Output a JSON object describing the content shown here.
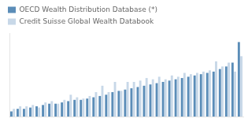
{
  "chart_data": {
    "type": "bar",
    "categories": [
      null,
      null,
      null,
      null,
      null,
      null,
      null,
      null,
      null,
      null,
      null,
      null,
      null,
      null,
      null,
      null,
      null,
      null,
      null,
      null,
      null,
      null,
      null,
      null,
      null,
      null,
      null,
      null,
      null,
      null,
      null,
      null,
      null,
      null,
      null,
      null,
      null
    ],
    "series": [
      {
        "name": "OECD Wealth Distribution Database (*)",
        "color": "#5B8DB8",
        "values": [
          4,
          6,
          6,
          7,
          8,
          9,
          10,
          10,
          11,
          12,
          13,
          13,
          14,
          15,
          16,
          17,
          19,
          20,
          21,
          22,
          23,
          24,
          25,
          26,
          27,
          28,
          29,
          30,
          31,
          32,
          33,
          34,
          35,
          37,
          39,
          42,
          58
        ]
      },
      {
        "name": "Credit Suisse Global Wealth Databook",
        "color": "#C8D8E8",
        "values": [
          6,
          8,
          8,
          9,
          7,
          11,
          12,
          10,
          13,
          17,
          15,
          14,
          16,
          19,
          24,
          19,
          27,
          20,
          27,
          27,
          28,
          30,
          29,
          31,
          29,
          32,
          31,
          34,
          33,
          34,
          35,
          36,
          43,
          39,
          42,
          35,
          47
        ]
      }
    ],
    "ylim": [
      0,
      65
    ],
    "grid": false,
    "tick_labels": false,
    "legend": "upper left"
  }
}
